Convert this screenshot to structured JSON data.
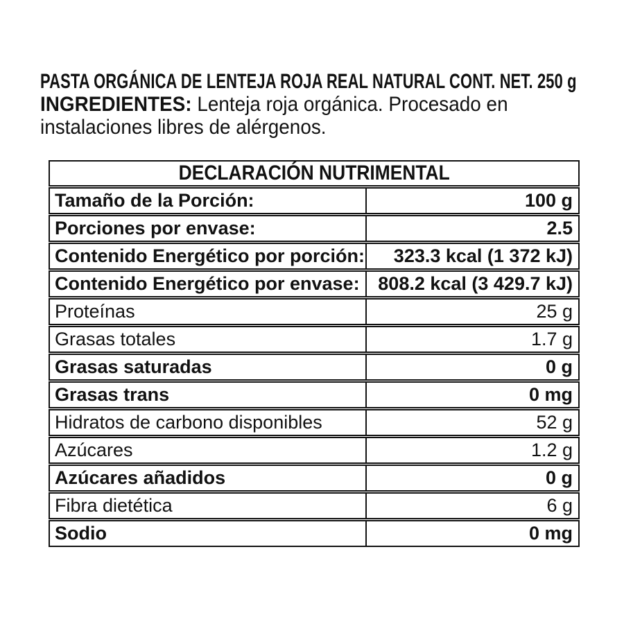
{
  "page": {
    "background": "#ffffff",
    "text_color": "#111111",
    "border_color": "#111111"
  },
  "product": {
    "title": "PASTA ORGÁNICA DE LENTEJA ROJA REAL NATURAL CONT. NET. 250 g",
    "ingredients_label": "INGREDIENTES:",
    "ingredients_line1_rest": " Lenteja roja orgánica. Procesado en",
    "ingredients_line2": "instalaciones libres de alérgenos."
  },
  "nutrition_table": {
    "title": "DECLARACIÓN NUTRIMENTAL",
    "rows": [
      {
        "label": "Tamaño de la Porción:",
        "value": "100 g",
        "bold": true
      },
      {
        "label": "Porciones por envase:",
        "value": "2.5",
        "bold": true
      },
      {
        "label": "Contenido Energético por porción:",
        "value": "323.3 kcal (1 372 kJ)",
        "bold": true
      },
      {
        "label": "Contenido Energético por envase:",
        "value": "808.2 kcal (3 429.7 kJ)",
        "bold": true
      },
      {
        "label": "Proteínas",
        "value": "25 g",
        "bold": false
      },
      {
        "label": "Grasas totales",
        "value": "1.7 g",
        "bold": false
      },
      {
        "label": "Grasas saturadas",
        "value": "0 g",
        "bold": true
      },
      {
        "label": "Grasas trans",
        "value": "0 mg",
        "bold": true
      },
      {
        "label": "Hidratos de carbono disponibles",
        "value": "52 g",
        "bold": false
      },
      {
        "label": "Azúcares",
        "value": "1.2 g",
        "bold": false
      },
      {
        "label": "Azúcares añadidos",
        "value": "0 g",
        "bold": true
      },
      {
        "label": "Fibra dietética",
        "value": "6 g",
        "bold": false
      },
      {
        "label": "Sodio",
        "value": "0 mg",
        "bold": true
      }
    ]
  }
}
